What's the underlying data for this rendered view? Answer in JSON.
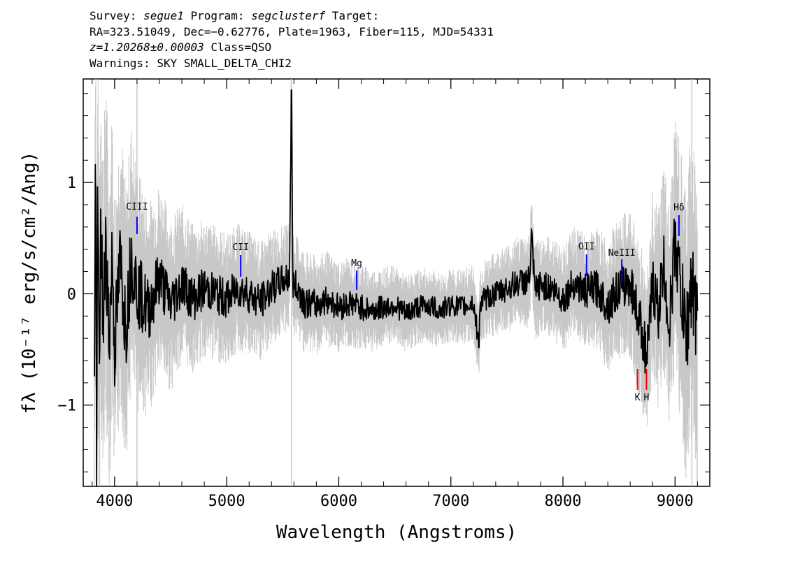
{
  "header": {
    "survey_label": "Survey: ",
    "survey": "segue1",
    "program_label": " Program: ",
    "program": "segclusterf",
    "target_label": " Target:",
    "line2": "RA=323.51049, Dec=−0.62776, Plate=1963, Fiber=115, MJD=54331",
    "z": "z=1.20268±0.00003",
    "class_text": " Class=QSO",
    "warnings": "Warnings: SKY SMALL_DELTA_CHI2"
  },
  "colors": {
    "spectrum": "#000000",
    "error": "#c8c8c8",
    "emission_line": "#0000ff",
    "absorption_line": "#ff0000"
  },
  "chart_data": {
    "type": "line",
    "xlabel": "Wavelength (Angstroms)",
    "ylabel": "fλ (10⁻¹⁷ erg/s/cm²/Ang)",
    "xlim": [
      3720,
      9310
    ],
    "ylim": [
      -1.73,
      1.93
    ],
    "xticks": [
      4000,
      5000,
      6000,
      7000,
      8000,
      9000
    ],
    "xtick_labels": [
      "4000",
      "5000",
      "6000",
      "7000",
      "8000",
      "9000"
    ],
    "yticks": [
      -1,
      0,
      1
    ],
    "ytick_labels": [
      "−1",
      "0",
      "1"
    ],
    "grid": false,
    "series": [
      {
        "role": "flux",
        "x": [
          3820,
          3830,
          3840,
          3850,
          3860,
          3880,
          3900,
          3920,
          3950,
          3980,
          4000,
          4050,
          4100,
          4150,
          4200,
          4300,
          4400,
          4500,
          4600,
          4700,
          4800,
          4900,
          5000,
          5100,
          5200,
          5300,
          5400,
          5500,
          5560,
          5577,
          5590,
          5650,
          5700,
          5800,
          5900,
          6000,
          6100,
          6200,
          6300,
          6400,
          6500,
          6600,
          6700,
          6800,
          6900,
          7000,
          7100,
          7200,
          7250,
          7260,
          7300,
          7400,
          7500,
          7600,
          7700,
          7720,
          7750,
          7800,
          7900,
          8000,
          8100,
          8200,
          8300,
          8400,
          8500,
          8600,
          8700,
          8750,
          8800,
          8850,
          8900,
          8950,
          9000,
          9050,
          9100,
          9150,
          9180,
          9200
        ],
        "y": [
          -1.0,
          1.38,
          -1.35,
          0.9,
          -0.6,
          0.55,
          -0.45,
          0.6,
          -0.4,
          0.35,
          -0.5,
          0.3,
          -0.3,
          0.35,
          0.05,
          -0.15,
          0.15,
          -0.1,
          0.1,
          -0.05,
          0.05,
          0.0,
          -0.05,
          0.05,
          0.0,
          -0.08,
          0.05,
          0.12,
          0.15,
          1.83,
          0.1,
          0.02,
          -0.08,
          -0.1,
          -0.05,
          -0.12,
          -0.08,
          -0.12,
          -0.15,
          -0.12,
          -0.1,
          -0.18,
          -0.12,
          -0.1,
          -0.15,
          -0.1,
          -0.12,
          -0.08,
          -0.45,
          -0.1,
          -0.05,
          0.0,
          0.05,
          0.1,
          0.12,
          0.5,
          0.02,
          0.08,
          0.05,
          -0.05,
          0.1,
          0.02,
          0.05,
          -0.1,
          0.05,
          0.1,
          -0.3,
          -0.6,
          0.1,
          -0.15,
          0.25,
          -0.3,
          0.5,
          0.05,
          -0.4,
          0.15,
          -0.2,
          -0.3
        ]
      },
      {
        "role": "error",
        "x": [
          3800,
          3850,
          3900,
          3950,
          4000,
          4100,
          4200,
          4300,
          4400,
          4600,
          4800,
          5000,
          5200,
          5500,
          5800,
          6000,
          6300,
          6600,
          7000,
          7300,
          7600,
          7800,
          8000,
          8200,
          8400,
          8600,
          8800,
          8900,
          9000,
          9100,
          9200
        ],
        "y": [
          1.3,
          1.2,
          1.1,
          1.0,
          0.9,
          0.85,
          0.75,
          0.65,
          0.58,
          0.48,
          0.42,
          0.4,
          0.38,
          0.33,
          0.3,
          0.28,
          0.25,
          0.23,
          0.22,
          0.24,
          0.28,
          0.3,
          0.32,
          0.35,
          0.4,
          0.45,
          0.55,
          0.65,
          0.75,
          0.9,
          1.0
        ]
      }
    ],
    "lines": [
      {
        "label": "CIII",
        "x": 4200,
        "color": "#0000ff"
      },
      {
        "label": "CII",
        "x": 5125,
        "color": "#0000ff"
      },
      {
        "label": "Mg",
        "x": 6160,
        "color": "#0000ff"
      },
      {
        "label": "OII",
        "x": 8210,
        "color": "#0000ff"
      },
      {
        "label": "NeIII",
        "x": 8525,
        "color": "#0000ff"
      },
      {
        "label": "Hδ",
        "x": 9035,
        "color": "#0000ff"
      },
      {
        "label": "K",
        "x": 8665,
        "color": "#ff0000"
      },
      {
        "label": "H",
        "x": 8745,
        "color": "#ff0000"
      }
    ]
  }
}
